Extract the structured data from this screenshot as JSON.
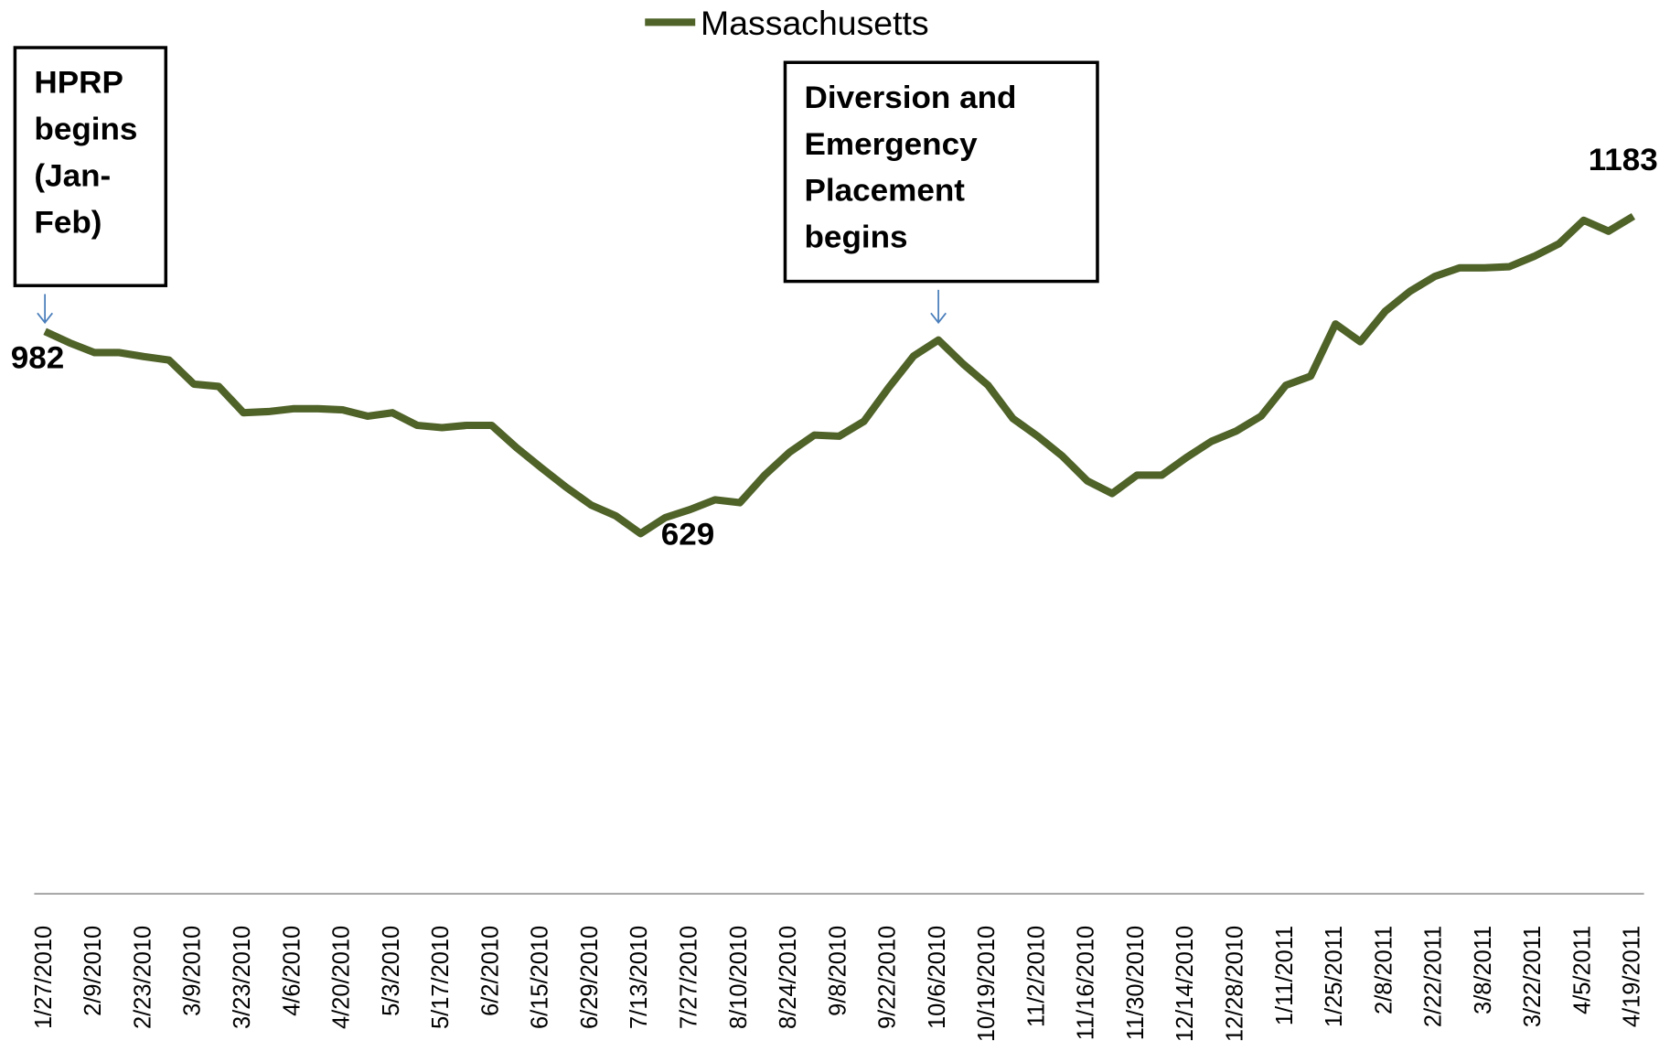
{
  "chart_data": {
    "type": "line",
    "categories": [
      "1/27/2010",
      null,
      "2/9/2010",
      null,
      "2/23/2010",
      null,
      "3/9/2010",
      null,
      "3/23/2010",
      null,
      "4/6/2010",
      null,
      "4/20/2010",
      null,
      "5/3/2010",
      null,
      "5/17/2010",
      null,
      "6/2/2010",
      null,
      "6/15/2010",
      null,
      "6/29/2010",
      null,
      "7/13/2010",
      null,
      "7/27/2010",
      null,
      "8/10/2010",
      null,
      "8/24/2010",
      null,
      "9/8/2010",
      null,
      "9/22/2010",
      null,
      "10/6/2010",
      null,
      "10/19/2010",
      null,
      "11/2/2010",
      null,
      "11/16/2010",
      null,
      "11/30/2010",
      null,
      "12/14/2010",
      null,
      "12/28/2010",
      null,
      "1/11/2011",
      null,
      "1/25/2011",
      null,
      "2/8/2011",
      null,
      "2/22/2011",
      null,
      "3/8/2011",
      null,
      "3/22/2011",
      null,
      "4/5/2011",
      null,
      "4/19/2011"
    ],
    "series": [
      {
        "name": "Massachusetts",
        "color": "#4f6228",
        "values": [
          982,
          962,
          945,
          945,
          938,
          932,
          890,
          886,
          840,
          842,
          847,
          847,
          845,
          834,
          840,
          818,
          814,
          818,
          818,
          779,
          744,
          710,
          679,
          660,
          629,
          657,
          671,
          688,
          683,
          731,
          771,
          801,
          799,
          825,
          884,
          939,
          967,
          925,
          888,
          830,
          799,
          764,
          721,
          699,
          731,
          731,
          762,
          790,
          808,
          834,
          888,
          904,
          995,
          964,
          1017,
          1052,
          1078,
          1093,
          1093,
          1095,
          1113,
          1135,
          1176,
          1157,
          1183
        ]
      }
    ],
    "ylim": [
      0,
      1400
    ],
    "annotations": [
      {
        "text": [
          "HPRP",
          "begins",
          "(Jan-",
          "Feb)"
        ],
        "x": "1/27/2010"
      },
      {
        "text": [
          "Diversion and",
          "Emergency",
          "Placement",
          "begins"
        ],
        "x": "10/6/2010"
      }
    ]
  }
}
